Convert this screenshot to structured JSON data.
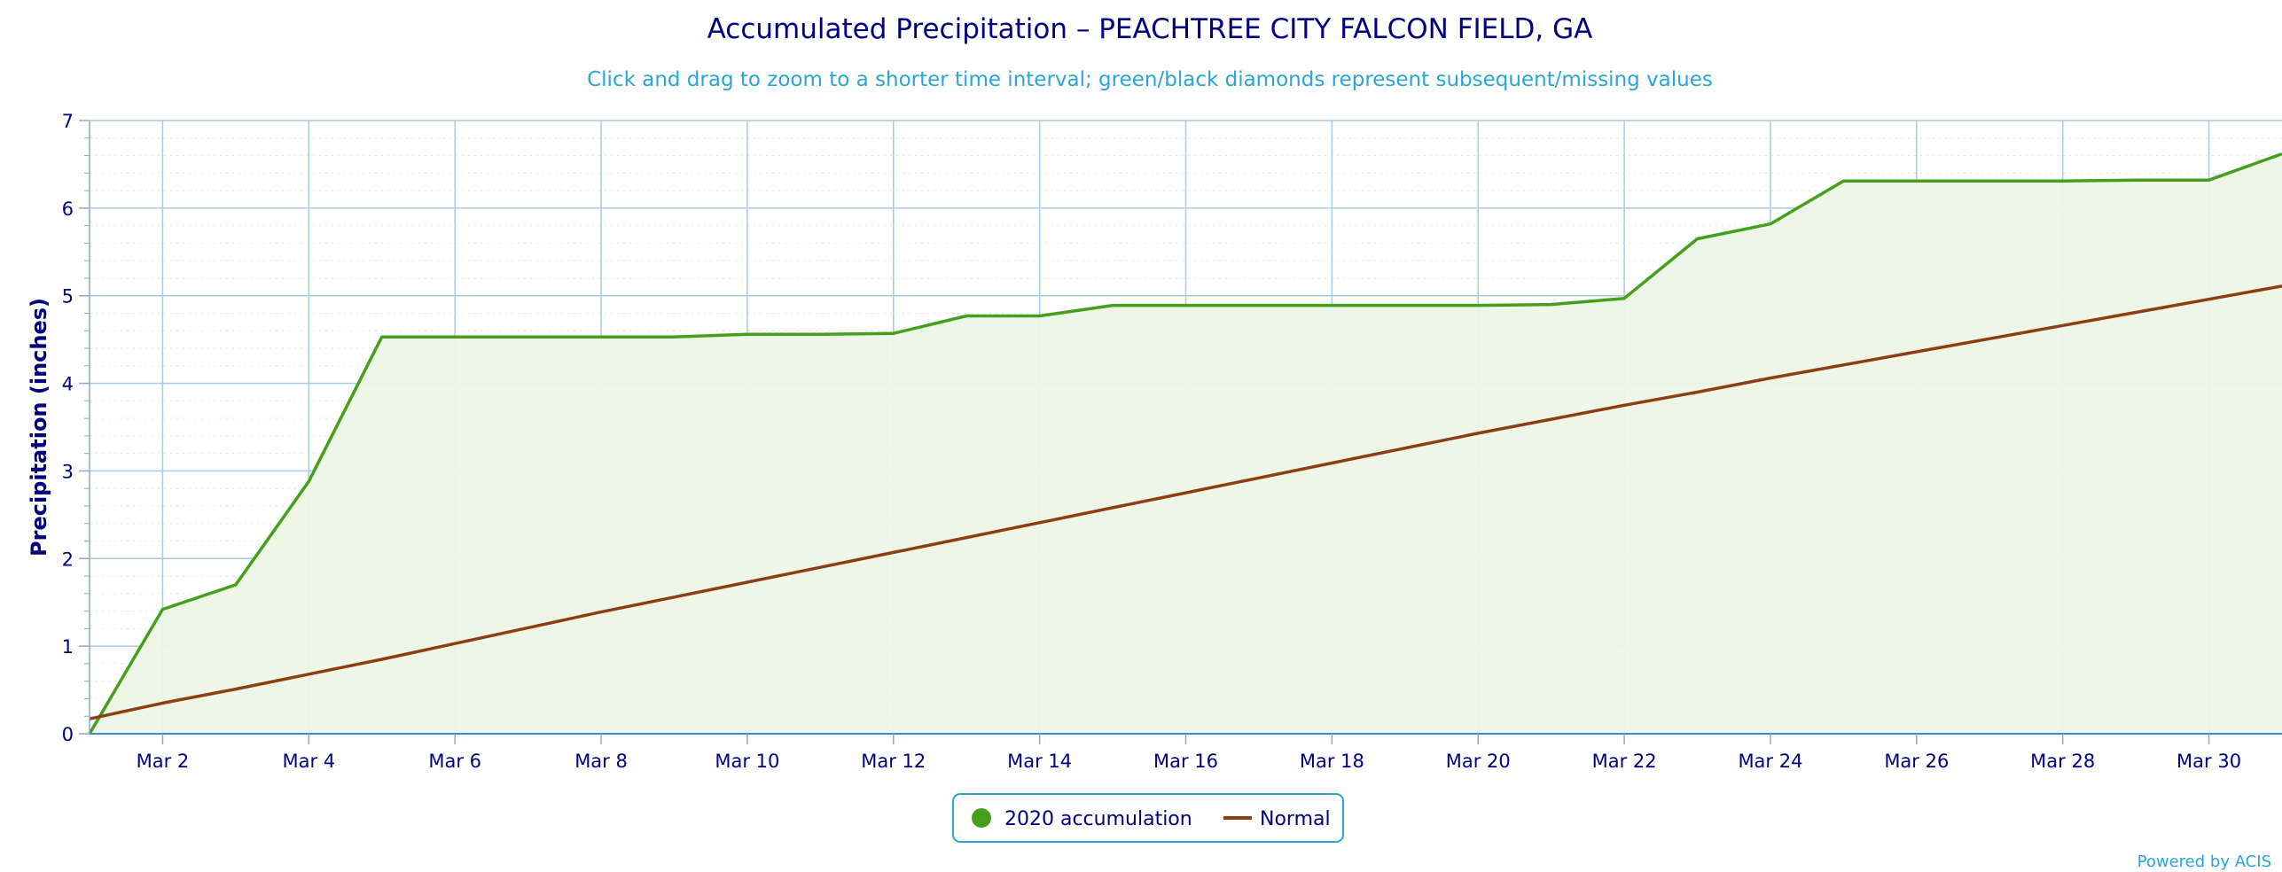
{
  "chart_data": {
    "type": "line",
    "title": "Accumulated Precipitation – PEACHTREE CITY FALCON FIELD, GA",
    "subtitle": "Click and drag to zoom to a shorter time interval; green/black diamonds represent subsequent/missing values",
    "ylabel": "Precipitation (inches)",
    "xlabel": "",
    "ylim": [
      0,
      7
    ],
    "yticks": [
      0,
      1,
      2,
      3,
      4,
      5,
      6,
      7
    ],
    "xlim": [
      1,
      31
    ],
    "xticks": [
      {
        "day": 2,
        "label": "Mar 2"
      },
      {
        "day": 4,
        "label": "Mar 4"
      },
      {
        "day": 6,
        "label": "Mar 6"
      },
      {
        "day": 8,
        "label": "Mar 8"
      },
      {
        "day": 10,
        "label": "Mar 10"
      },
      {
        "day": 12,
        "label": "Mar 12"
      },
      {
        "day": 14,
        "label": "Mar 14"
      },
      {
        "day": 16,
        "label": "Mar 16"
      },
      {
        "day": 18,
        "label": "Mar 18"
      },
      {
        "day": 20,
        "label": "Mar 20"
      },
      {
        "day": 22,
        "label": "Mar 22"
      },
      {
        "day": 24,
        "label": "Mar 24"
      },
      {
        "day": 26,
        "label": "Mar 26"
      },
      {
        "day": 28,
        "label": "Mar 28"
      },
      {
        "day": 30,
        "label": "Mar 30"
      }
    ],
    "grid": true,
    "legend_position": "bottom-center",
    "series": [
      {
        "name": "2020 accumulation",
        "color": "#44a01c",
        "fill": "#edf5e6",
        "marker": "circle",
        "x": [
          1,
          2,
          3,
          4,
          5,
          6,
          7,
          8,
          9,
          10,
          11,
          12,
          13,
          14,
          15,
          16,
          17,
          18,
          19,
          20,
          21,
          22,
          23,
          24,
          25,
          26,
          27,
          28,
          29,
          30,
          31
        ],
        "values": [
          0.0,
          1.42,
          1.7,
          2.88,
          4.53,
          4.53,
          4.53,
          4.53,
          4.53,
          4.56,
          4.56,
          4.57,
          4.77,
          4.77,
          4.89,
          4.89,
          4.89,
          4.89,
          4.89,
          4.89,
          4.9,
          4.97,
          5.65,
          5.82,
          6.31,
          6.31,
          6.31,
          6.31,
          6.32,
          6.32,
          6.62
        ]
      },
      {
        "name": "Normal",
        "color": "#8b3e12",
        "marker": "line",
        "x": [
          1,
          2,
          3,
          4,
          5,
          6,
          7,
          8,
          9,
          10,
          11,
          12,
          13,
          14,
          15,
          16,
          17,
          18,
          19,
          20,
          21,
          22,
          23,
          24,
          25,
          26,
          27,
          28,
          29,
          30,
          31
        ],
        "values": [
          0.17,
          0.35,
          0.51,
          0.68,
          0.85,
          1.03,
          1.21,
          1.39,
          1.56,
          1.73,
          1.9,
          2.07,
          2.24,
          2.41,
          2.58,
          2.75,
          2.92,
          3.09,
          3.26,
          3.43,
          3.59,
          3.75,
          3.9,
          4.06,
          4.21,
          4.36,
          4.51,
          4.66,
          4.81,
          4.96,
          5.11
        ]
      }
    ]
  },
  "credit": "Powered by ACIS"
}
